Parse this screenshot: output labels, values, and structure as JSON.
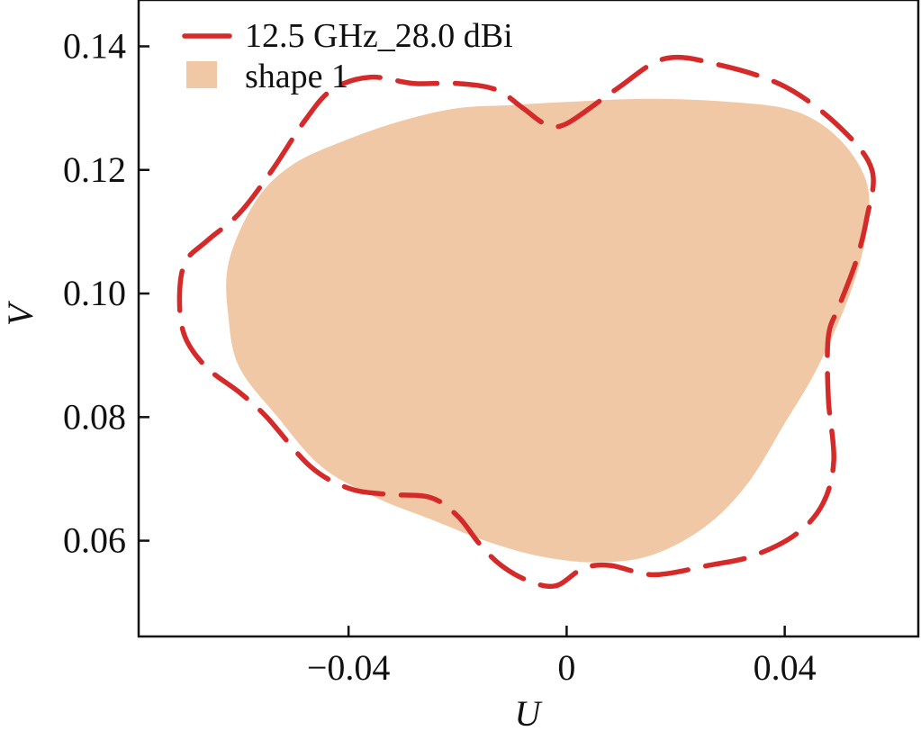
{
  "chart_data": {
    "type": "area",
    "xlabel": "U",
    "ylabel": "V",
    "xlim": [
      -0.0785,
      0.0645
    ],
    "ylim": [
      0.0445,
      0.1475
    ],
    "xticks": [
      -0.04,
      0,
      0.04
    ],
    "xtick_labels": [
      "−0.04",
      "0",
      "0.04"
    ],
    "yticks": [
      0.06,
      0.08,
      0.1,
      0.12,
      0.14
    ],
    "ytick_labels": [
      "0.06",
      "0.08",
      "0.10",
      "0.12",
      "0.14"
    ],
    "grid": false,
    "legend_position": "top-left",
    "series": [
      {
        "name": "12.5 GHz_28.0 dBi",
        "style": "dashed",
        "color": "#d42a2a",
        "closed": true,
        "points": [
          [
            0.0,
            0.1275
          ],
          [
            0.009,
            0.133
          ],
          [
            0.018,
            0.138
          ],
          [
            0.028,
            0.137
          ],
          [
            0.04,
            0.1335
          ],
          [
            0.05,
            0.127
          ],
          [
            0.056,
            0.12
          ],
          [
            0.055,
            0.112
          ],
          [
            0.053,
            0.105
          ],
          [
            0.05,
            0.098
          ],
          [
            0.048,
            0.093
          ],
          [
            0.048,
            0.083
          ],
          [
            0.049,
            0.073
          ],
          [
            0.047,
            0.066
          ],
          [
            0.042,
            0.061
          ],
          [
            0.034,
            0.0575
          ],
          [
            0.026,
            0.056
          ],
          [
            0.016,
            0.0545
          ],
          [
            0.008,
            0.056
          ],
          [
            0.003,
            0.0555
          ],
          [
            -0.002,
            0.0527
          ],
          [
            -0.007,
            0.0535
          ],
          [
            -0.012,
            0.056
          ],
          [
            -0.016,
            0.0595
          ],
          [
            -0.02,
            0.064
          ],
          [
            -0.025,
            0.067
          ],
          [
            -0.033,
            0.0675
          ],
          [
            -0.04,
            0.0685
          ],
          [
            -0.047,
            0.072
          ],
          [
            -0.055,
            0.08
          ],
          [
            -0.06,
            0.084
          ],
          [
            -0.066,
            0.088
          ],
          [
            -0.07,
            0.093
          ],
          [
            -0.071,
            0.099
          ],
          [
            -0.07,
            0.105
          ],
          [
            -0.066,
            0.1085
          ],
          [
            -0.06,
            0.113
          ],
          [
            -0.054,
            0.12
          ],
          [
            -0.048,
            0.128
          ],
          [
            -0.043,
            0.133
          ],
          [
            -0.036,
            0.135
          ],
          [
            -0.028,
            0.134
          ],
          [
            -0.02,
            0.134
          ],
          [
            -0.013,
            0.133
          ],
          [
            -0.008,
            0.13
          ],
          [
            -0.004,
            0.1275
          ]
        ]
      },
      {
        "name": "shape 1",
        "style": "filled",
        "color": "#f0c8a5",
        "closed": true,
        "points": [
          [
            -0.062,
            0.105
          ],
          [
            -0.057,
            0.115
          ],
          [
            -0.05,
            0.121
          ],
          [
            -0.04,
            0.125
          ],
          [
            -0.03,
            0.128
          ],
          [
            -0.02,
            0.13
          ],
          [
            -0.01,
            0.1305
          ],
          [
            0.0,
            0.131
          ],
          [
            0.015,
            0.1315
          ],
          [
            0.03,
            0.131
          ],
          [
            0.042,
            0.1295
          ],
          [
            0.05,
            0.125
          ],
          [
            0.055,
            0.118
          ],
          [
            0.055,
            0.11
          ],
          [
            0.052,
            0.1
          ],
          [
            0.046,
            0.088
          ],
          [
            0.04,
            0.079
          ],
          [
            0.033,
            0.069
          ],
          [
            0.025,
            0.062
          ],
          [
            0.015,
            0.0575
          ],
          [
            0.005,
            0.0565
          ],
          [
            -0.005,
            0.0575
          ],
          [
            -0.015,
            0.06
          ],
          [
            -0.025,
            0.0635
          ],
          [
            -0.035,
            0.067
          ],
          [
            -0.045,
            0.072
          ],
          [
            -0.053,
            0.08
          ],
          [
            -0.06,
            0.088
          ],
          [
            -0.062,
            0.096
          ]
        ]
      }
    ]
  }
}
